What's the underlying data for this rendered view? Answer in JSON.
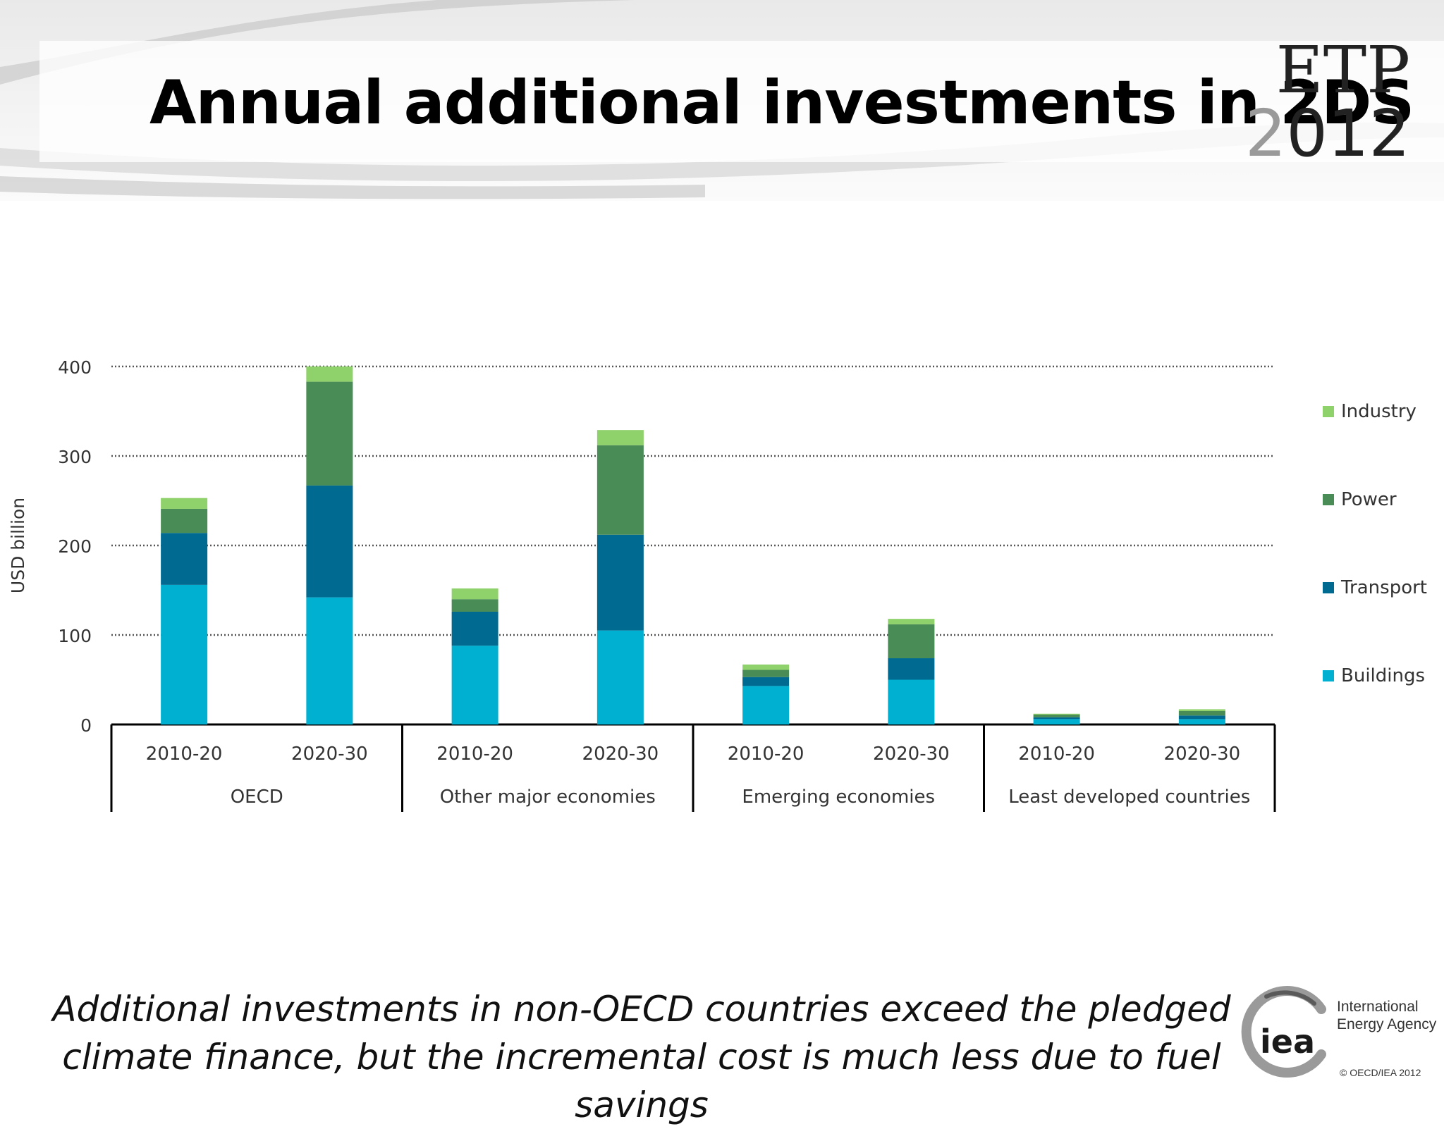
{
  "slide": {
    "title": "Annual additional investments in 2DS",
    "caption": "Additional investments  in non-OECD countries exceed the pledged climate finance, but the incremental cost is much less due to fuel savings"
  },
  "etp_logo": {
    "top": "ETP",
    "year_first": "2",
    "year_rest": "012"
  },
  "iea_logo": {
    "mark_text": "iea",
    "name_line1": "International",
    "name_line2": "Energy Agency"
  },
  "copyright": "© OECD/IEA 2012",
  "chart_data": {
    "type": "bar",
    "stacked": true,
    "ylabel": "USD billion",
    "ylim": [
      0,
      400
    ],
    "yticks": [
      0,
      100,
      200,
      300,
      400
    ],
    "grid": true,
    "legend_position": "right",
    "groups": [
      {
        "label": "OECD",
        "categories": [
          "2010-20",
          "2020-30"
        ]
      },
      {
        "label": "Other major economies",
        "categories": [
          "2010-20",
          "2020-30"
        ]
      },
      {
        "label": "Emerging economies",
        "categories": [
          "2010-20",
          "2020-30"
        ]
      },
      {
        "label": "Least developed countries",
        "categories": [
          "2010-20",
          "2020-30"
        ]
      }
    ],
    "series": [
      {
        "name": "Buildings",
        "color": "#00b0d0",
        "values": [
          156,
          142,
          88,
          105,
          43,
          50,
          6,
          6
        ]
      },
      {
        "name": "Transport",
        "color": "#006a91",
        "values": [
          58,
          125,
          38,
          107,
          10,
          24,
          2,
          4
        ]
      },
      {
        "name": "Power",
        "color": "#4a8c55",
        "values": [
          27,
          116,
          14,
          100,
          8,
          38,
          3,
          5
        ]
      },
      {
        "name": "Industry",
        "color": "#8fd16a",
        "values": [
          12,
          17,
          12,
          17,
          6,
          6,
          1,
          2
        ]
      }
    ]
  }
}
